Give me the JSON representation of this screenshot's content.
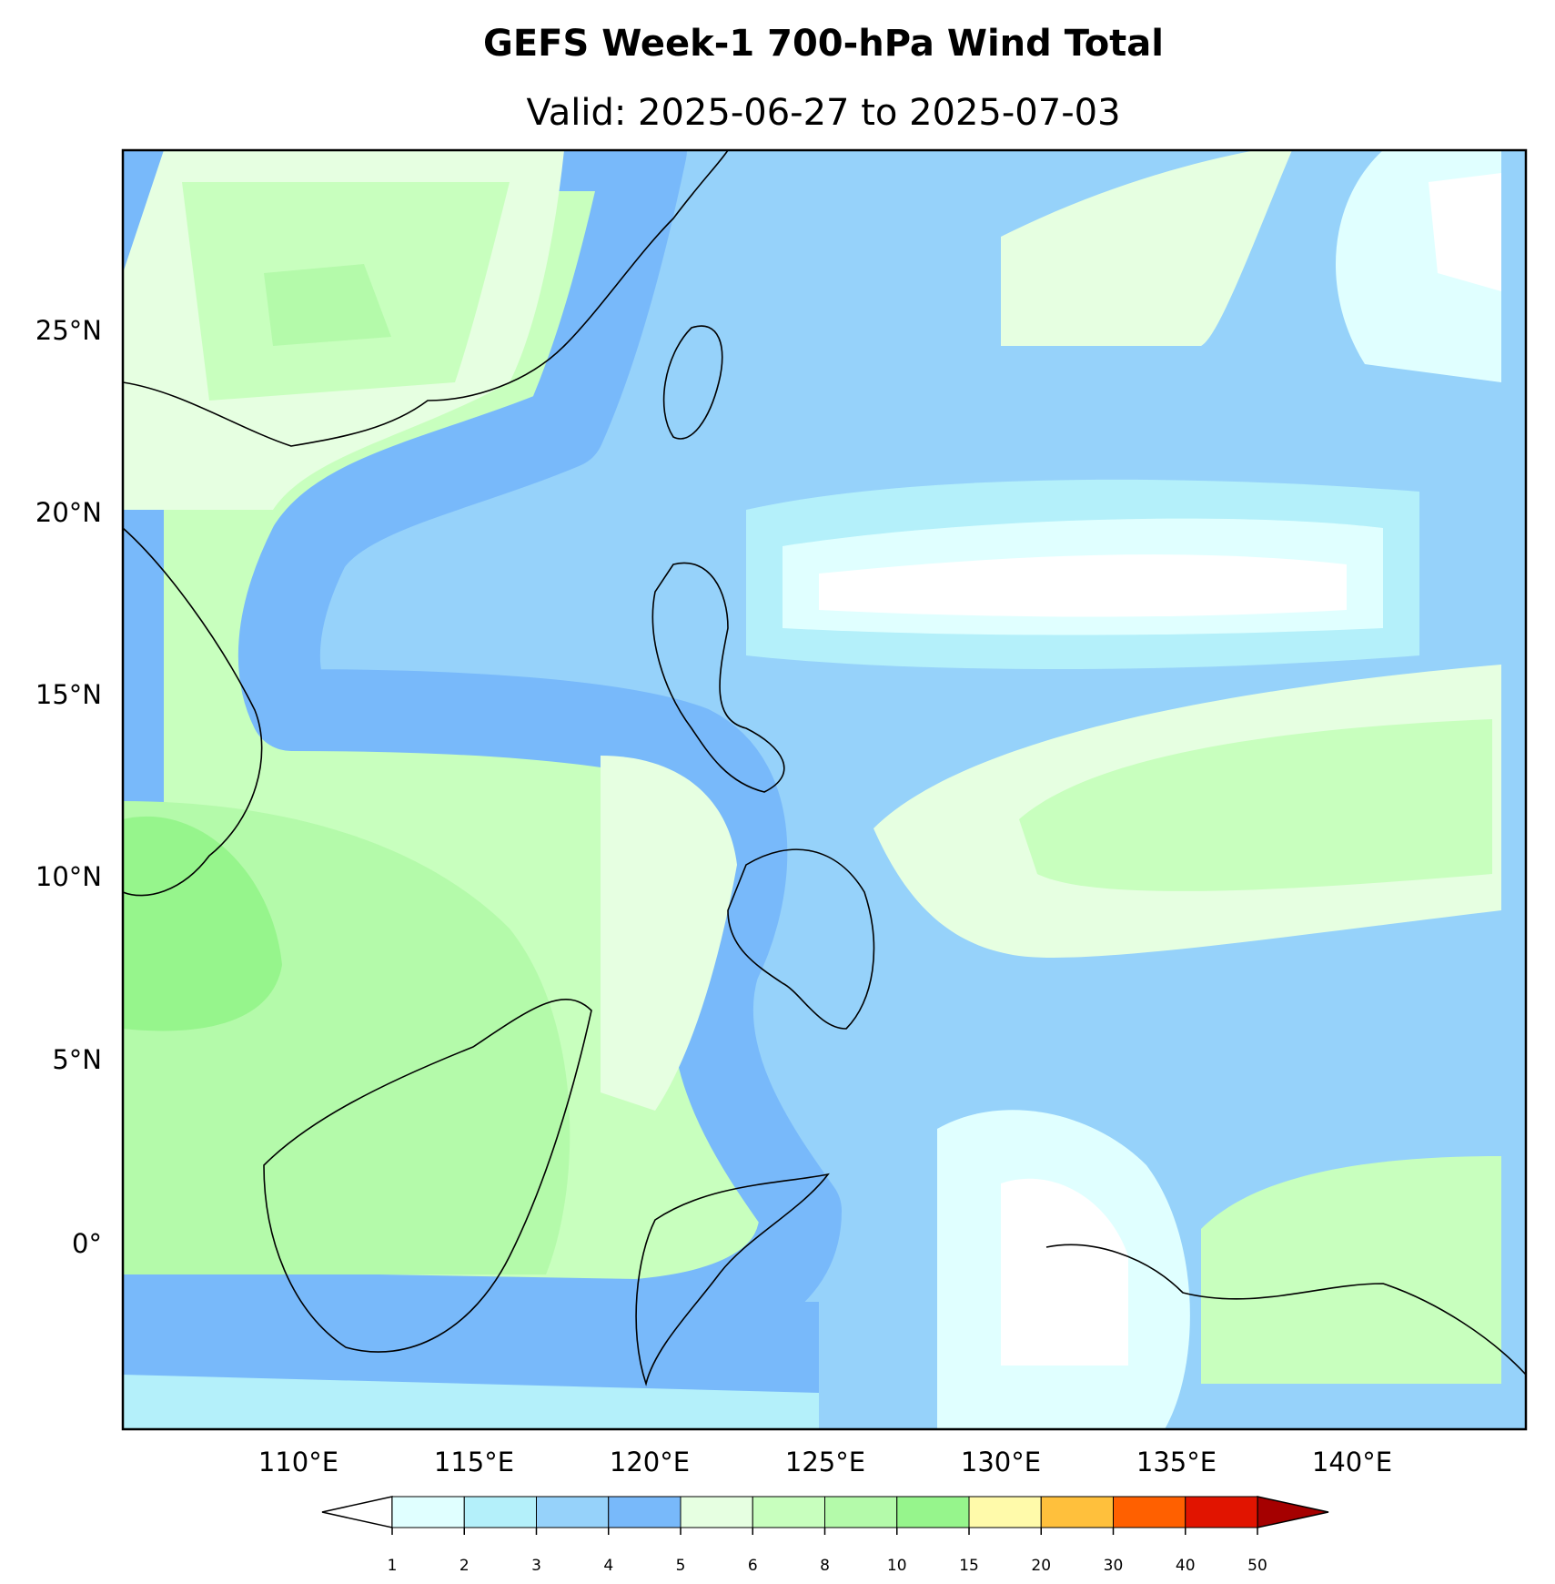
{
  "title": "GEFS Week-1 700-hPa Wind Total",
  "subtitle": "Valid: 2025-06-27 to 2025-07-03",
  "map": {
    "lat_labels": [
      "25°N",
      "20°N",
      "15°N",
      "10°N",
      "5°N",
      "0°"
    ],
    "lon_labels": [
      "110°E",
      "115°E",
      "120°E",
      "125°E",
      "130°E",
      "135°E",
      "140°E"
    ]
  },
  "colorbar": {
    "levels": [
      1,
      2,
      3,
      4,
      5,
      6,
      8,
      10,
      15,
      20,
      30,
      40,
      50
    ],
    "colors": [
      "#e0ffff",
      "#b4f0fa",
      "#96d2fa",
      "#78b9fa",
      "#e6ffe1",
      "#c8ffbe",
      "#b4faaa",
      "#96f58c",
      "#fffaaa",
      "#ffc03c",
      "#ff6000",
      "#e11400"
    ],
    "under_color": "#ffffff",
    "over_color": "#a50000"
  }
}
